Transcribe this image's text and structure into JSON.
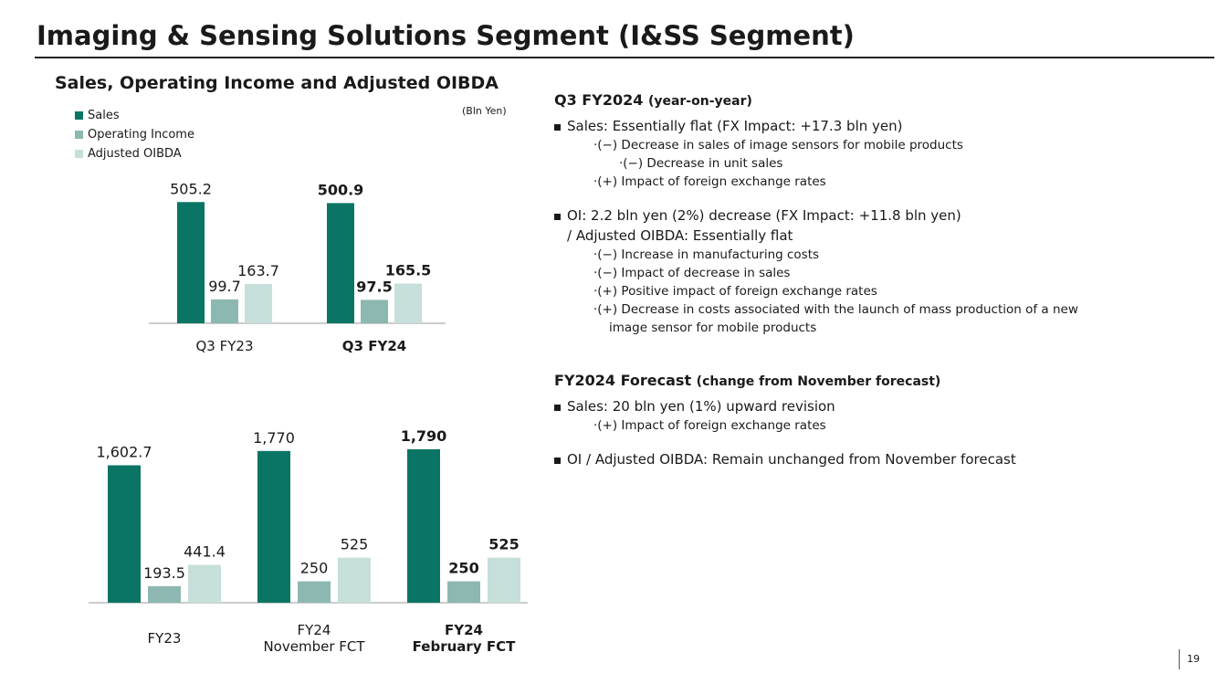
{
  "page": {
    "title": "Imaging & Sensing Solutions Segment (I&SS Segment)",
    "subtitle": "Sales, Operating Income and Adjusted OIBDA",
    "unit": "(Bln Yen)",
    "page_number": "19"
  },
  "legend": [
    {
      "label": "Sales",
      "color": "#0B7565"
    },
    {
      "label": "Operating Income",
      "color": "#8DB8B1"
    },
    {
      "label": "Adjusted OIBDA",
      "color": "#C6DFDA"
    }
  ],
  "colors": {
    "sales": "#0B7565",
    "oi": "#8DB8B1",
    "oibda": "#C6DFDA",
    "axis": "#9a9a9a"
  },
  "chart_data": [
    {
      "type": "bar",
      "categories": [
        "Q3 FY23",
        "Q3 FY24"
      ],
      "category_bold": [
        false,
        true
      ],
      "series": [
        {
          "name": "Sales",
          "values": [
            505.2,
            500.9
          ]
        },
        {
          "name": "Operating Income",
          "values": [
            99.7,
            97.5
          ]
        },
        {
          "name": "Adjusted OIBDA",
          "values": [
            163.7,
            165.5
          ]
        }
      ],
      "labels": [
        [
          "505.2",
          "500.9"
        ],
        [
          "99.7",
          "97.5"
        ],
        [
          "163.7",
          "165.5"
        ]
      ],
      "ylim": [
        0,
        510
      ],
      "grid": false,
      "legend_position": "top-left"
    },
    {
      "type": "bar",
      "categories": [
        [
          "FY23"
        ],
        [
          "FY24",
          "November FCT"
        ],
        [
          "FY24",
          "February FCT"
        ]
      ],
      "category_bold": [
        false,
        false,
        true
      ],
      "series": [
        {
          "name": "Sales",
          "values": [
            1602.7,
            1770,
            1790
          ]
        },
        {
          "name": "Operating Income",
          "values": [
            193.5,
            250,
            250
          ]
        },
        {
          "name": "Adjusted OIBDA",
          "values": [
            441.4,
            525,
            525
          ]
        }
      ],
      "labels": [
        [
          "1,602.7",
          "1,770",
          "1,790"
        ],
        [
          "193.5",
          "250",
          "250"
        ],
        [
          "441.4",
          "525",
          "525"
        ]
      ],
      "ylim": [
        0,
        1800
      ],
      "grid": false
    }
  ],
  "q3": {
    "heading": "Q3 FY2024",
    "heading_note": "(year-on-year)",
    "sales": {
      "text": "Sales: Essentially flat (FX Impact: +17.3 bln yen)",
      "sub1": "·(−) Decrease in sales of image sensors for mobile products",
      "sub1a": "·(−) Decrease in unit sales",
      "sub2": "·(+) Impact of foreign exchange rates"
    },
    "oi": {
      "text": "OI: 2.2 bln yen (2%) decrease (FX Impact: +11.8 bln yen)",
      "text2": "/ Adjusted OIBDA: Essentially flat",
      "sub1": "·(−) Increase in manufacturing costs",
      "sub2": "·(−) Impact of decrease in sales",
      "sub3": "·(+) Positive impact of foreign exchange rates",
      "sub4": "·(+) Decrease in costs associated with the launch of mass production of a new",
      "sub4b": "image sensor for mobile products"
    }
  },
  "fy": {
    "heading": "FY2024 Forecast",
    "heading_note": "(change from November forecast)",
    "sales": {
      "text": "Sales: 20 bln yen (1%) upward revision",
      "sub1": "·(+) Impact of foreign exchange rates"
    },
    "oi": {
      "text": "OI / Adjusted OIBDA: Remain unchanged from November forecast"
    }
  }
}
